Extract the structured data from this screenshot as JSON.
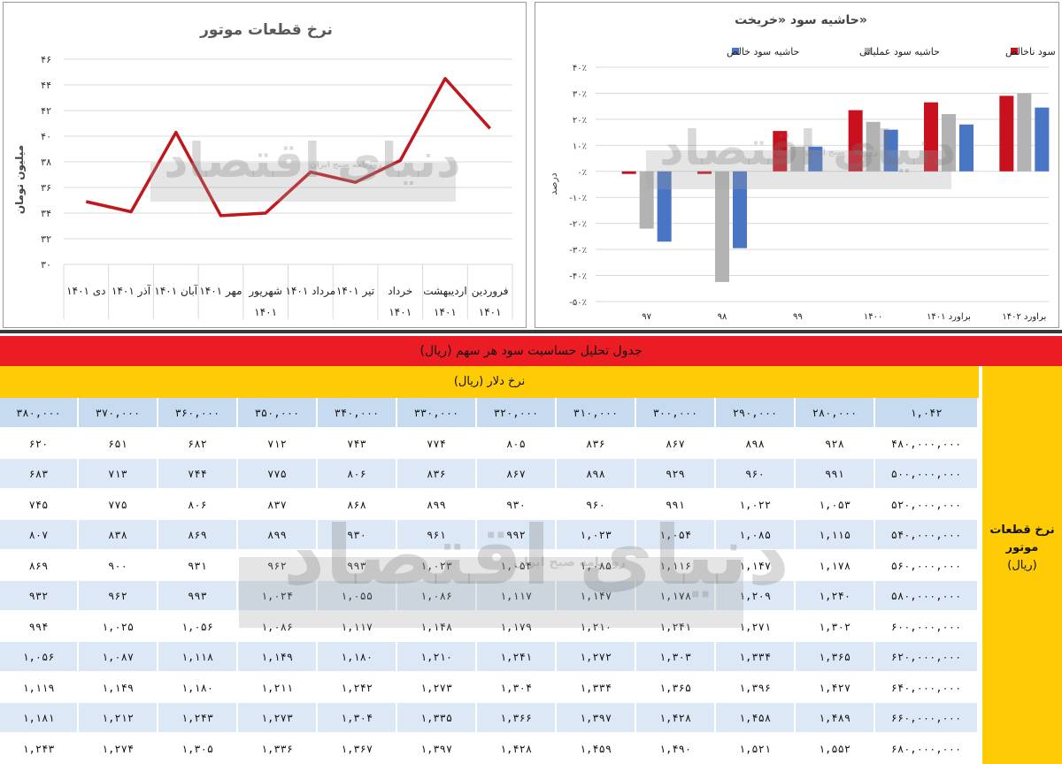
{
  "left_chart": {
    "chart_data": {
      "type": "line",
      "title": "نرخ قطعات موتور",
      "ylabel": "میلیون تومان",
      "ylim": [
        30,
        46
      ],
      "yticks": [
        30,
        32,
        34,
        36,
        38,
        40,
        42,
        44,
        46
      ],
      "ytick_labels": [
        "۳۰",
        "۳۲",
        "۳۴",
        "۳۶",
        "۳۸",
        "۴۰",
        "۴۲",
        "۴۴",
        "۴۶"
      ],
      "categories": [
        [
          "فروردین",
          "۱۴۰۱"
        ],
        [
          "اردیبهشت",
          "۱۴۰۱"
        ],
        [
          "خرداد",
          "۱۴۰۱"
        ],
        [
          "تیر ۱۴۰۱"
        ],
        [
          "مرداد ۱۴۰۱"
        ],
        [
          "شهریور",
          "۱۴۰۱"
        ],
        [
          "مهر ۱۴۰۱"
        ],
        [
          "آبان ۱۴۰۱"
        ],
        [
          "آذر ۱۴۰۱"
        ],
        [
          "دی ۱۴۰۱"
        ]
      ],
      "values": [
        34.9,
        34.1,
        40.3,
        33.8,
        34.0,
        37.2,
        36.4,
        38.1,
        44.5,
        40.6
      ],
      "line_color": "#c0161c",
      "grid": "horizontal"
    }
  },
  "right_chart": {
    "chart_data": {
      "type": "bar",
      "title": "حاشیه سود «خریخت»",
      "ylabel": "درصد",
      "ylim": [
        -50,
        40
      ],
      "yticks": [
        -50,
        -40,
        -30,
        -20,
        -10,
        0,
        10,
        20,
        30,
        40
      ],
      "ytick_labels": [
        "-۵۰٪",
        "-۴۰٪",
        "-۳۰٪",
        "-۲۰٪",
        "-۱۰٪",
        "۰٪",
        "۱۰٪",
        "۲۰٪",
        "۳۰٪",
        "۴۰٪"
      ],
      "categories": [
        "۹۷",
        "۹۸",
        "۹۹",
        "۱۴۰۰",
        "براورد ۱۴۰۱",
        "براورد ۱۴۰۲"
      ],
      "legend_position": "top",
      "series": [
        {
          "name": "حاشیه سود ناخالص",
          "color": "#c8101e",
          "values": [
            -1,
            -1,
            15.5,
            23.5,
            26.5,
            29
          ]
        },
        {
          "name": "حاشیه سود عملیاتی",
          "color": "#b3b3b3",
          "values": [
            -22,
            -42.5,
            9.5,
            19,
            22,
            30
          ]
        },
        {
          "name": "حاشیه سود خالص",
          "color": "#4a74c4",
          "values": [
            -27,
            -29.5,
            9.5,
            16,
            18,
            24.5
          ]
        }
      ],
      "grid": "horizontal"
    }
  },
  "table": {
    "title": "جدول تحلیل حساسیت سود هر سهم (ریال)",
    "col_group_label": "نرخ دلار (ریال)",
    "row_group_label_line1": "نرخ قطعات",
    "row_group_label_line2": "موتور",
    "row_group_label_unit": "(ریال)",
    "corner_value": "۱,۰۴۲",
    "col_headers": [
      "۲۸۰,۰۰۰",
      "۲۹۰,۰۰۰",
      "۳۰۰,۰۰۰",
      "۳۱۰,۰۰۰",
      "۳۲۰,۰۰۰",
      "۳۳۰,۰۰۰",
      "۳۴۰,۰۰۰",
      "۳۵۰,۰۰۰",
      "۳۶۰,۰۰۰",
      "۳۷۰,۰۰۰",
      "۳۸۰,۰۰۰"
    ],
    "rows": [
      {
        "header": "۴۸۰,۰۰۰,۰۰۰",
        "values": [
          "۹۲۸",
          "۸۹۸",
          "۸۶۷",
          "۸۳۶",
          "۸۰۵",
          "۷۷۴",
          "۷۴۳",
          "۷۱۲",
          "۶۸۲",
          "۶۵۱",
          "۶۲۰"
        ]
      },
      {
        "header": "۵۰۰,۰۰۰,۰۰۰",
        "values": [
          "۹۹۱",
          "۹۶۰",
          "۹۲۹",
          "۸۹۸",
          "۸۶۷",
          "۸۳۶",
          "۸۰۶",
          "۷۷۵",
          "۷۴۴",
          "۷۱۳",
          "۶۸۳"
        ]
      },
      {
        "header": "۵۲۰,۰۰۰,۰۰۰",
        "values": [
          "۱,۰۵۳",
          "۱,۰۲۲",
          "۹۹۱",
          "۹۶۰",
          "۹۳۰",
          "۸۹۹",
          "۸۶۸",
          "۸۳۷",
          "۸۰۶",
          "۷۷۵",
          "۷۴۵"
        ]
      },
      {
        "header": "۵۴۰,۰۰۰,۰۰۰",
        "values": [
          "۱,۱۱۵",
          "۱,۰۸۵",
          "۱,۰۵۴",
          "۱,۰۲۳",
          "۹۹۲",
          "۹۶۱",
          "۹۳۰",
          "۸۹۹",
          "۸۶۹",
          "۸۳۸",
          "۸۰۷"
        ]
      },
      {
        "header": "۵۶۰,۰۰۰,۰۰۰",
        "values": [
          "۱,۱۷۸",
          "۱,۱۴۷",
          "۱,۱۱۶",
          "۱,۰۸۵",
          "۱,۰۵۴",
          "۱,۰۲۳",
          "۹۹۳",
          "۹۶۲",
          "۹۳۱",
          "۹۰۰",
          "۸۶۹"
        ]
      },
      {
        "header": "۵۸۰,۰۰۰,۰۰۰",
        "values": [
          "۱,۲۴۰",
          "۱,۲۰۹",
          "۱,۱۷۸",
          "۱,۱۴۷",
          "۱,۱۱۷",
          "۱,۰۸۶",
          "۱,۰۵۵",
          "۱,۰۲۴",
          "۹۹۳",
          "۹۶۲",
          "۹۳۲"
        ]
      },
      {
        "header": "۶۰۰,۰۰۰,۰۰۰",
        "values": [
          "۱,۳۰۲",
          "۱,۲۷۱",
          "۱,۲۴۱",
          "۱,۲۱۰",
          "۱,۱۷۹",
          "۱,۱۴۸",
          "۱,۱۱۷",
          "۱,۰۸۶",
          "۱,۰۵۶",
          "۱,۰۲۵",
          "۹۹۴"
        ]
      },
      {
        "header": "۶۲۰,۰۰۰,۰۰۰",
        "values": [
          "۱,۳۶۵",
          "۱,۳۳۴",
          "۱,۳۰۳",
          "۱,۲۷۲",
          "۱,۲۴۱",
          "۱,۲۱۰",
          "۱,۱۸۰",
          "۱,۱۴۹",
          "۱,۱۱۸",
          "۱,۰۸۷",
          "۱,۰۵۶"
        ]
      },
      {
        "header": "۶۴۰,۰۰۰,۰۰۰",
        "values": [
          "۱,۴۲۷",
          "۱,۳۹۶",
          "۱,۳۶۵",
          "۱,۳۳۴",
          "۱,۳۰۴",
          "۱,۲۷۳",
          "۱,۲۴۲",
          "۱,۲۱۱",
          "۱,۱۸۰",
          "۱,۱۴۹",
          "۱,۱۱۹"
        ]
      },
      {
        "header": "۶۶۰,۰۰۰,۰۰۰",
        "values": [
          "۱,۴۸۹",
          "۱,۴۵۸",
          "۱,۴۲۸",
          "۱,۳۹۷",
          "۱,۳۶۶",
          "۱,۳۳۵",
          "۱,۳۰۴",
          "۱,۲۷۳",
          "۱,۲۴۳",
          "۱,۲۱۲",
          "۱,۱۸۱"
        ]
      },
      {
        "header": "۶۸۰,۰۰۰,۰۰۰",
        "values": [
          "۱,۵۵۲",
          "۱,۵۲۱",
          "۱,۴۹۰",
          "۱,۴۵۹",
          "۱,۴۲۸",
          "۱,۳۹۷",
          "۱,۳۶۷",
          "۱,۳۳۶",
          "۱,۳۰۵",
          "۱,۲۷۴",
          "۱,۲۴۳"
        ]
      }
    ]
  },
  "watermark": {
    "brand": "دنیای اقتصاد",
    "tagline": "روزنامه صبح ایران"
  }
}
